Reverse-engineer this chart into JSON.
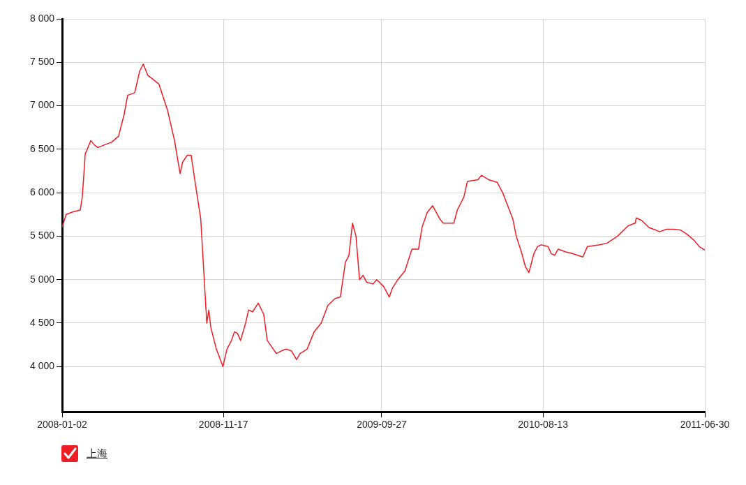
{
  "chart_data": {
    "type": "line",
    "x": [
      "2008-01-02",
      "2008-01-10",
      "2008-01-24",
      "2008-02-07",
      "2008-02-11",
      "2008-02-17",
      "2008-02-21",
      "2008-02-28",
      "2008-03-06",
      "2008-03-13",
      "2008-03-26",
      "2008-04-09",
      "2008-04-23",
      "2008-05-04",
      "2008-05-11",
      "2008-05-25",
      "2008-06-04",
      "2008-06-11",
      "2008-06-20",
      "2008-07-01",
      "2008-07-12",
      "2008-07-29",
      "2008-08-12",
      "2008-08-23",
      "2008-08-28",
      "2008-09-06",
      "2008-09-14",
      "2008-09-25",
      "2008-10-03",
      "2008-10-10",
      "2008-10-15",
      "2008-10-19",
      "2008-10-23",
      "2008-11-03",
      "2008-11-16",
      "2008-11-24",
      "2008-12-03",
      "2008-12-09",
      "2008-12-15",
      "2008-12-21",
      "2008-12-31",
      "2009-01-06",
      "2009-01-14",
      "2009-01-25",
      "2009-02-05",
      "2009-02-12",
      "2009-02-24",
      "2009-03-02",
      "2009-03-12",
      "2009-03-21",
      "2009-04-01",
      "2009-04-11",
      "2009-04-18",
      "2009-05-02",
      "2009-05-16",
      "2009-05-30",
      "2009-06-12",
      "2009-06-26",
      "2009-07-07",
      "2009-07-17",
      "2009-07-24",
      "2009-07-31",
      "2009-08-07",
      "2009-08-14",
      "2009-08-21",
      "2009-08-28",
      "2009-09-10",
      "2009-09-17",
      "2009-10-01",
      "2009-10-12",
      "2009-10-18",
      "2009-10-29",
      "2009-11-12",
      "2009-11-26",
      "2009-12-09",
      "2009-12-16",
      "2009-12-26",
      "2010-01-06",
      "2010-01-20",
      "2010-01-27",
      "2010-02-17",
      "2010-02-24",
      "2010-03-09",
      "2010-03-16",
      "2010-04-06",
      "2010-04-13",
      "2010-04-27",
      "2010-05-14",
      "2010-05-25",
      "2010-06-14",
      "2010-06-21",
      "2010-07-02",
      "2010-07-09",
      "2010-07-16",
      "2010-07-26",
      "2010-08-02",
      "2010-08-09",
      "2010-08-23",
      "2010-08-29",
      "2010-09-05",
      "2010-09-12",
      "2010-09-26",
      "2010-10-10",
      "2010-10-31",
      "2010-11-09",
      "2010-12-04",
      "2010-12-18",
      "2011-01-08",
      "2011-01-29",
      "2011-02-12",
      "2011-02-14",
      "2011-02-25",
      "2011-03-11",
      "2011-03-25",
      "2011-04-01",
      "2011-04-15",
      "2011-04-29",
      "2011-05-13",
      "2011-05-26",
      "2011-06-09",
      "2011-06-19",
      "2011-06-30"
    ],
    "series": [
      {
        "name": "上海",
        "color": "#ee1c25",
        "values": [
          5600,
          5750,
          5780,
          5800,
          5950,
          6450,
          6500,
          6600,
          6550,
          6520,
          6550,
          6580,
          6650,
          6900,
          7120,
          7150,
          7400,
          7480,
          7350,
          7300,
          7250,
          6950,
          6600,
          6220,
          6350,
          6430,
          6430,
          6000,
          5700,
          5000,
          4500,
          4650,
          4450,
          4200,
          4000,
          4200,
          4300,
          4400,
          4380,
          4300,
          4500,
          4650,
          4630,
          4730,
          4600,
          4300,
          4200,
          4150,
          4180,
          4200,
          4180,
          4080,
          4150,
          4200,
          4400,
          4500,
          4700,
          4780,
          4800,
          5200,
          5280,
          5650,
          5500,
          5000,
          5050,
          4970,
          4950,
          5000,
          4920,
          4800,
          4900,
          5000,
          5100,
          5350,
          5350,
          5600,
          5770,
          5850,
          5700,
          5650,
          5650,
          5800,
          5950,
          6130,
          6150,
          6200,
          6150,
          6120,
          6000,
          5700,
          5500,
          5300,
          5150,
          5080,
          5300,
          5380,
          5400,
          5380,
          5300,
          5280,
          5350,
          5320,
          5300,
          5260,
          5380,
          5400,
          5420,
          5500,
          5620,
          5650,
          5710,
          5680,
          5600,
          5570,
          5550,
          5580,
          5580,
          5570,
          5520,
          5450,
          5380,
          5340
        ]
      }
    ],
    "xlim": [
      "2008-01-02",
      "2011-06-30"
    ],
    "xticks": [
      "2008-01-02",
      "2008-11-17",
      "2009-09-27",
      "2010-08-13",
      "2011-06-30"
    ],
    "ylim": [
      3480,
      8000
    ],
    "yticks": [
      {
        "value": 4000,
        "label": "4 000"
      },
      {
        "value": 4500,
        "label": "4 500"
      },
      {
        "value": 5000,
        "label": "5 000"
      },
      {
        "value": 5500,
        "label": "5 500"
      },
      {
        "value": 6000,
        "label": "6 000"
      },
      {
        "value": 6500,
        "label": "6 500"
      },
      {
        "value": 7000,
        "label": "7 000"
      },
      {
        "value": 7500,
        "label": "7 500"
      },
      {
        "value": 8000,
        "label": "8 000"
      }
    ],
    "grid": true,
    "legend": "bottom left",
    "marker": "none",
    "line_style": "solid"
  }
}
